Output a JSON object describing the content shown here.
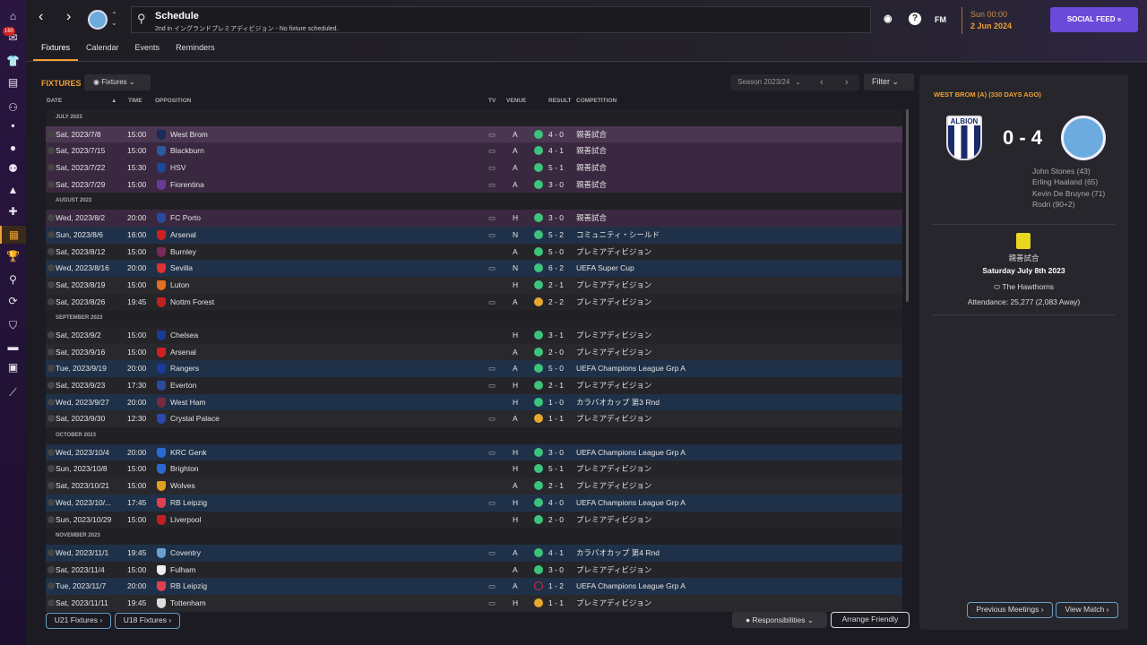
{
  "sidebar": {
    "badge": "160",
    "icons": [
      "home-icon",
      "inbox-icon",
      "squad-icon",
      "tactics-icon",
      "staff-icon",
      "dynamics-icon",
      "medical-icon",
      "analysis-icon",
      "training-icon",
      "medical-centre-icon",
      "schedule-icon",
      "competitions-icon",
      "scouting-icon",
      "transfers-icon",
      "club-info-icon",
      "finances-icon",
      "dev-centre-icon",
      "stats-icon"
    ],
    "active": "schedule-icon"
  },
  "header": {
    "title": "Schedule",
    "subtitle": "2nd in イングランドプレミアディビジョン - No fixture scheduled.",
    "fm_label": "FM",
    "time": "Sun 00:00",
    "date": "2 Jun 2024",
    "social_feed": "SOCIAL FEED"
  },
  "tabs": [
    "Fixtures",
    "Calendar",
    "Events",
    "Reminders"
  ],
  "fixtures": {
    "title": "FIXTURES",
    "view_dropdown": "Fixtures",
    "season": "Season 2023/24",
    "filter": "Filter",
    "columns": {
      "date": "DATE",
      "time": "TIME",
      "opposition": "OPPOSITION",
      "tv": "TV",
      "venue": "VENUE",
      "result": "RESULT",
      "competition": "COMPETITION"
    },
    "rows": [
      {
        "month": "JULY 2023"
      },
      {
        "date": "Sat, 2023/7/8",
        "time": "15:00",
        "opp": "West Brom",
        "tv": true,
        "venue": "A",
        "res": "W",
        "score": "4 - 0",
        "comp": "親善試合",
        "type": "sel",
        "crest": "#1a2a5a"
      },
      {
        "date": "Sat, 2023/7/15",
        "time": "15:00",
        "opp": "Blackburn",
        "tv": true,
        "venue": "A",
        "res": "W",
        "score": "4 - 1",
        "comp": "親善試合",
        "type": "fr",
        "crest": "#2a5aa0"
      },
      {
        "date": "Sat, 2023/7/22",
        "time": "15:30",
        "opp": "HSV",
        "tv": true,
        "venue": "A",
        "res": "W",
        "score": "5 - 1",
        "comp": "親善試合",
        "type": "fr",
        "crest": "#1a4a9a"
      },
      {
        "date": "Sat, 2023/7/29",
        "time": "15:00",
        "opp": "Fiorentina",
        "tv": true,
        "venue": "A",
        "res": "W",
        "score": "3 - 0",
        "comp": "親善試合",
        "type": "fr",
        "crest": "#6a3a9a"
      },
      {
        "month": "AUGUST 2023"
      },
      {
        "date": "Wed, 2023/8/2",
        "time": "20:00",
        "opp": "FC Porto",
        "tv": true,
        "venue": "H",
        "res": "W",
        "score": "3 - 0",
        "comp": "親善試合",
        "type": "fr",
        "crest": "#2a4aa0"
      },
      {
        "date": "Sun, 2023/8/6",
        "time": "16:00",
        "opp": "Arsenal",
        "tv": true,
        "venue": "N",
        "res": "W",
        "score": "5 - 2",
        "comp": "コミュニティ・シールド",
        "type": "eu",
        "crest": "#d02020"
      },
      {
        "date": "Sat, 2023/8/12",
        "time": "15:00",
        "opp": "Burnley",
        "tv": false,
        "venue": "A",
        "res": "W",
        "score": "5 - 0",
        "comp": "プレミアディビジョン",
        "type": "n",
        "crest": "#7a2a5a"
      },
      {
        "date": "Wed, 2023/8/16",
        "time": "20:00",
        "opp": "Sevilla",
        "tv": true,
        "venue": "N",
        "res": "W",
        "score": "6 - 2",
        "comp": "UEFA Super Cup",
        "type": "eu",
        "crest": "#e03030"
      },
      {
        "date": "Sat, 2023/8/19",
        "time": "15:00",
        "opp": "Luton",
        "tv": false,
        "venue": "H",
        "res": "W",
        "score": "2 - 1",
        "comp": "プレミアディビジョン",
        "type": "n",
        "crest": "#e07020"
      },
      {
        "date": "Sat, 2023/8/26",
        "time": "19:45",
        "opp": "Nottm Forest",
        "tv": true,
        "venue": "A",
        "res": "D",
        "score": "2 - 2",
        "comp": "プレミアディビジョン",
        "type": "n",
        "crest": "#c02020"
      },
      {
        "month": "SEPTEMBER 2023"
      },
      {
        "date": "Sat, 2023/9/2",
        "time": "15:00",
        "opp": "Chelsea",
        "tv": false,
        "venue": "H",
        "res": "W",
        "score": "3 - 1",
        "comp": "プレミアディビジョン",
        "type": "n",
        "crest": "#1a3a9a"
      },
      {
        "date": "Sat, 2023/9/16",
        "time": "15:00",
        "opp": "Arsenal",
        "tv": false,
        "venue": "A",
        "res": "W",
        "score": "2 - 0",
        "comp": "プレミアディビジョン",
        "type": "n",
        "crest": "#d02020"
      },
      {
        "date": "Tue, 2023/9/19",
        "time": "20:00",
        "opp": "Rangers",
        "tv": true,
        "venue": "A",
        "res": "W",
        "score": "5 - 0",
        "comp": "UEFA Champions League Grp A",
        "type": "eu",
        "crest": "#1a3aa0"
      },
      {
        "date": "Sat, 2023/9/23",
        "time": "17:30",
        "opp": "Everton",
        "tv": true,
        "venue": "H",
        "res": "W",
        "score": "2 - 1",
        "comp": "プレミアディビジョン",
        "type": "n",
        "crest": "#2a4aa0"
      },
      {
        "date": "Wed, 2023/9/27",
        "time": "20:00",
        "opp": "West Ham",
        "tv": false,
        "venue": "H",
        "res": "W",
        "score": "1 - 0",
        "comp": "カラバオカップ 第3 Rnd",
        "type": "eu",
        "crest": "#7a2a3a"
      },
      {
        "date": "Sat, 2023/9/30",
        "time": "12:30",
        "opp": "Crystal Palace",
        "tv": true,
        "venue": "A",
        "res": "D",
        "score": "1 - 1",
        "comp": "プレミアディビジョン",
        "type": "n",
        "crest": "#2a4ab0"
      },
      {
        "month": "OCTOBER 2023"
      },
      {
        "date": "Wed, 2023/10/4",
        "time": "20:00",
        "opp": "KRC Genk",
        "tv": true,
        "venue": "H",
        "res": "W",
        "score": "3 - 0",
        "comp": "UEFA Champions League Grp A",
        "type": "eu",
        "crest": "#2a6ad0"
      },
      {
        "date": "Sun, 2023/10/8",
        "time": "15:00",
        "opp": "Brighton",
        "tv": false,
        "venue": "H",
        "res": "W",
        "score": "5 - 1",
        "comp": "プレミアディビジョン",
        "type": "n",
        "crest": "#2a6ad0"
      },
      {
        "date": "Sat, 2023/10/21",
        "time": "15:00",
        "opp": "Wolves",
        "tv": false,
        "venue": "A",
        "res": "W",
        "score": "2 - 1",
        "comp": "プレミアディビジョン",
        "type": "n",
        "crest": "#e0a020"
      },
      {
        "date": "Wed, 2023/10/...",
        "time": "17:45",
        "opp": "RB Leipzig",
        "tv": true,
        "venue": "H",
        "res": "W",
        "score": "4 - 0",
        "comp": "UEFA Champions League Grp A",
        "type": "eu",
        "crest": "#e04050"
      },
      {
        "date": "Sun, 2023/10/29",
        "time": "15:00",
        "opp": "Liverpool",
        "tv": false,
        "venue": "H",
        "res": "W",
        "score": "2 - 0",
        "comp": "プレミアディビジョン",
        "type": "n",
        "crest": "#c02020"
      },
      {
        "month": "NOVEMBER 2023"
      },
      {
        "date": "Wed, 2023/11/1",
        "time": "19:45",
        "opp": "Coventry",
        "tv": true,
        "venue": "A",
        "res": "W",
        "score": "4 - 1",
        "comp": "カラバオカップ 第4 Rnd",
        "type": "eu",
        "crest": "#6aa0d0"
      },
      {
        "date": "Sat, 2023/11/4",
        "time": "15:00",
        "opp": "Fulham",
        "tv": false,
        "venue": "A",
        "res": "W",
        "score": "3 - 0",
        "comp": "プレミアディビジョン",
        "type": "n",
        "crest": "#eeeeee"
      },
      {
        "date": "Tue, 2023/11/7",
        "time": "20:00",
        "opp": "RB Leipzig",
        "tv": true,
        "venue": "A",
        "res": "L",
        "score": "1 - 2",
        "comp": "UEFA Champions League Grp A",
        "type": "eu",
        "crest": "#e04050"
      },
      {
        "date": "Sat, 2023/11/11",
        "time": "19:45",
        "opp": "Tottenham",
        "tv": true,
        "venue": "H",
        "res": "D",
        "score": "1 - 1",
        "comp": "プレミアディビジョン",
        "type": "n",
        "crest": "#dddddd"
      }
    ],
    "u21": "U21 Fixtures",
    "u18": "U18 Fixtures",
    "responsibilities": "Responsibilities",
    "arrange_friendly": "Arrange Friendly"
  },
  "match_panel": {
    "title": "WEST BROM (A) (330 DAYS AGO)",
    "score": "0 - 4",
    "home_crest_text": "ALBION",
    "scorers": [
      "John Stones (43)",
      "Erling Haaland (65)",
      "Kevin De Bruyne (71)",
      "Rodri (90+2)"
    ],
    "competition": "親善試合",
    "date": "Saturday July 8th 2023",
    "stadium": "The Hawthorns",
    "attendance": "Attendance: 25,277 (2,083 Away)",
    "prev_meetings": "Previous Meetings",
    "view_match": "View Match"
  },
  "colors": {
    "accent": "#f0a030",
    "win": "#3cc47c",
    "draw": "#e8a830",
    "loss": "#d03040",
    "social": "#6a4ad8",
    "friendly_row": "#3a2840",
    "cup_row": "#1f3148"
  }
}
